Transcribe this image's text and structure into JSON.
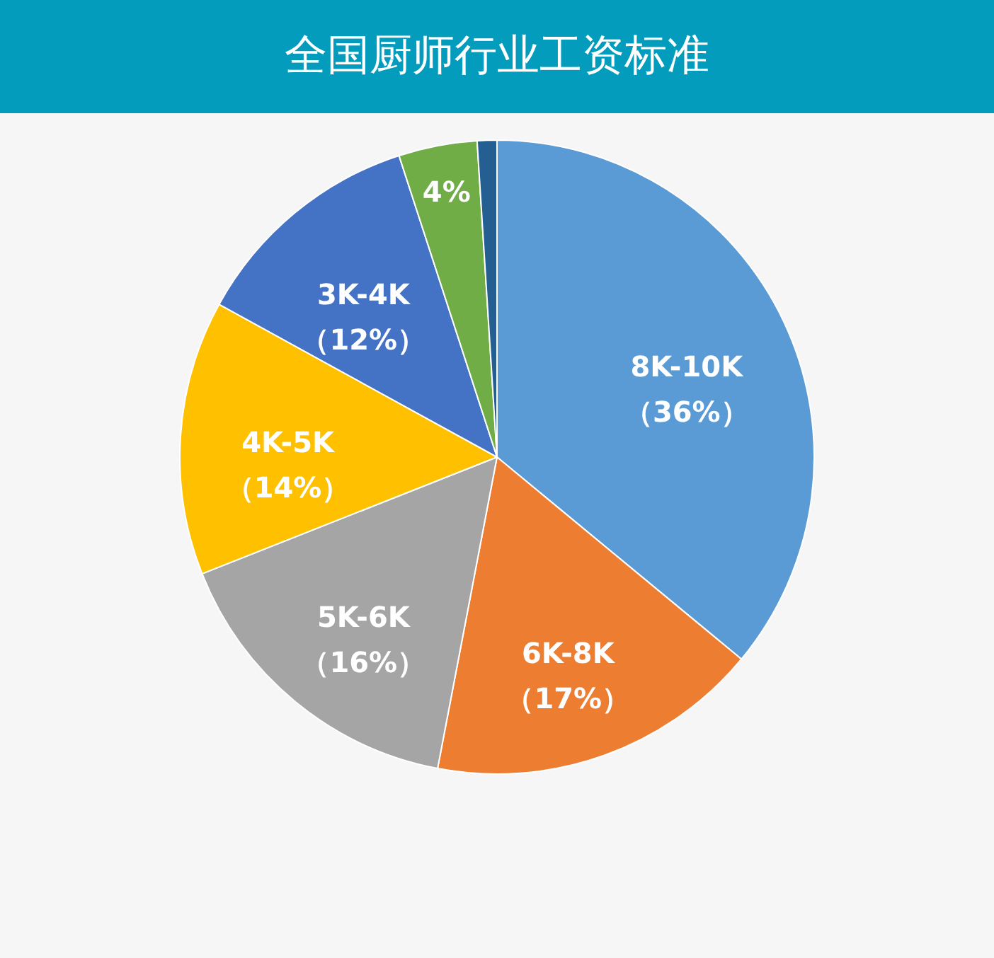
{
  "chart_data": {
    "type": "pie",
    "title": "全国厨师行业工资标准",
    "categories": [
      "8K-10K",
      "6K-8K",
      "5K-6K",
      "4K-5K",
      "3K-4K",
      null,
      null
    ],
    "values": [
      36,
      17,
      16,
      14,
      12,
      4,
      1
    ],
    "value_labels": [
      "（36%）",
      "（17%）",
      "（16%）",
      "（14%）",
      "（12%）",
      "4%",
      null
    ],
    "colors": [
      "#5b9bd5",
      "#ed7d31",
      "#a5a5a5",
      "#ffc000",
      "#4472c4",
      "#70ad47",
      "#255e91"
    ]
  }
}
